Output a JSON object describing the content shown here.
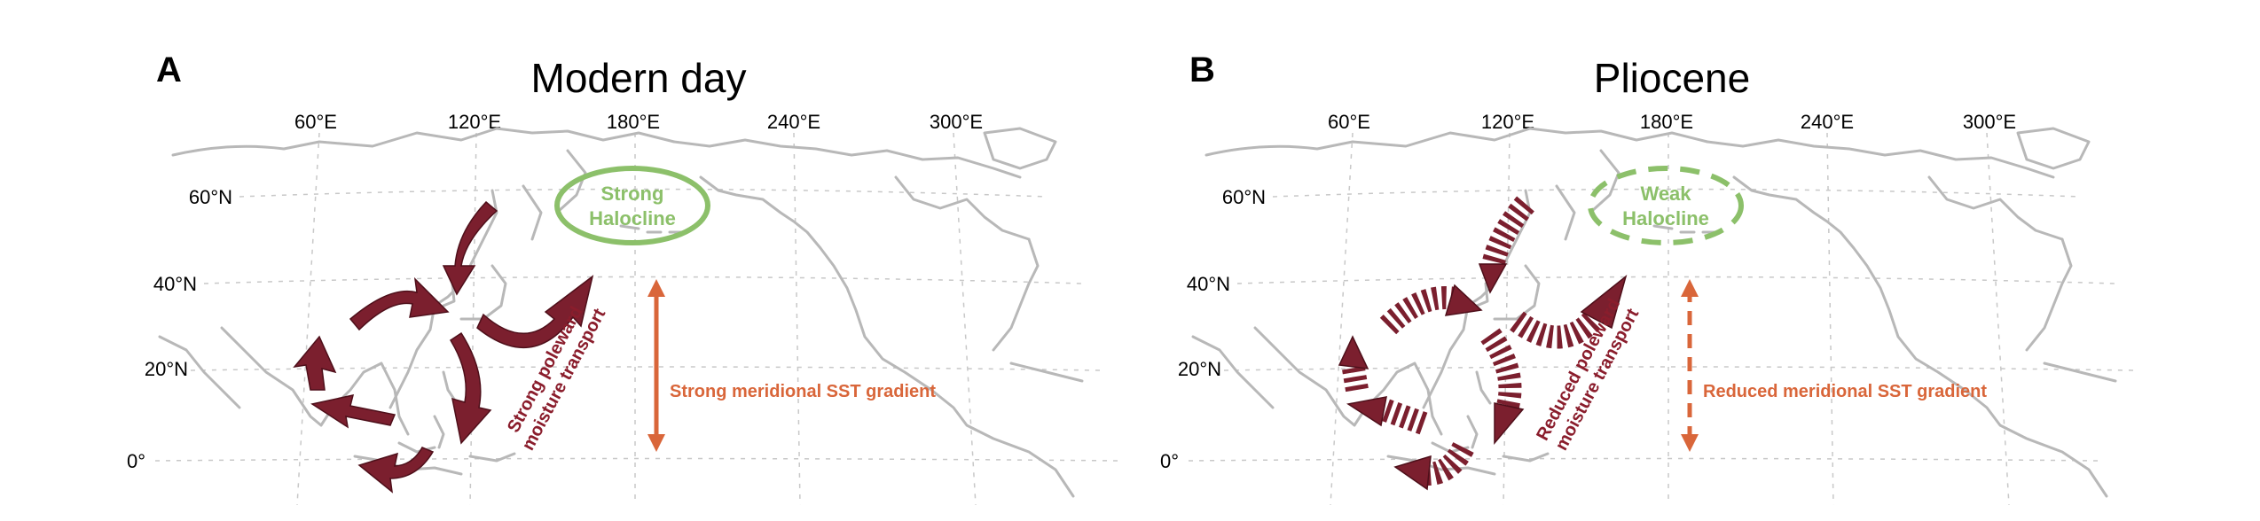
{
  "panels": [
    {
      "letter": "A",
      "title": "Modern day",
      "lon_ticks": [
        "60°E",
        "120°E",
        "180°E",
        "240°E",
        "300°E"
      ],
      "lat_ticks": [
        "60°N",
        "40°N",
        "20°N",
        "0°"
      ],
      "halocline": [
        "Strong",
        "Halocline"
      ],
      "moisture": [
        "Strong poleward",
        "moisture transport"
      ],
      "sst": "Strong meridional SST gradient"
    },
    {
      "letter": "B",
      "title": "Pliocene",
      "lon_ticks": [
        "60°E",
        "120°E",
        "180°E",
        "240°E",
        "300°E"
      ],
      "lat_ticks": [
        "60°N",
        "40°N",
        "20°N",
        "0°"
      ],
      "halocline": [
        "Weak",
        "Halocline"
      ],
      "moisture": [
        "Reduced poleward",
        "moisture transport"
      ],
      "sst": "Reduced meridional SST gradient"
    }
  ],
  "colors": {
    "arrow": "#7b1f2e",
    "halocline": "#8cc06a",
    "sst": "#d9663a",
    "coast": "#b8b8b8"
  }
}
